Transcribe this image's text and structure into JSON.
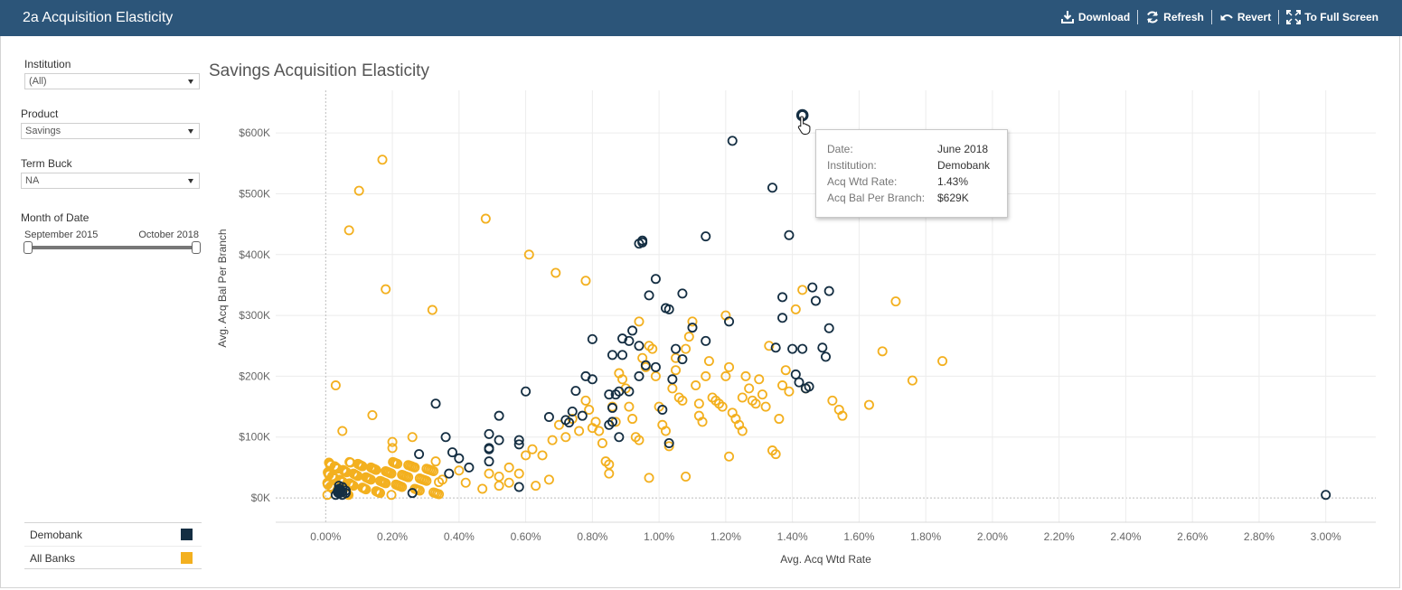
{
  "app": {
    "title": "2a Acquisition Elasticity"
  },
  "toolbar": {
    "download": "Download",
    "refresh": "Refresh",
    "revert": "Revert",
    "full_screen": "To Full Screen"
  },
  "filters": {
    "institution": {
      "label": "Institution",
      "value": "(All)"
    },
    "product": {
      "label": "Product",
      "value": "Savings"
    },
    "term_bucket": {
      "label": "Term Buck",
      "value": "NA"
    },
    "month": {
      "label": "Month of Date",
      "start": "September 2015",
      "end": "October 2018",
      "range_fraction": [
        0.0,
        1.0
      ]
    }
  },
  "legend": [
    {
      "label": "Demobank",
      "color": "#142e42"
    },
    {
      "label": "All Banks",
      "color": "#f3b01f"
    }
  ],
  "tooltip": {
    "rows": [
      {
        "key": "Date:",
        "value": "June 2018"
      },
      {
        "key": "Institution:",
        "value": "Demobank"
      },
      {
        "key": "Acq Wtd Rate:",
        "value": "1.43%"
      },
      {
        "key": "Acq Bal Per Branch:",
        "value": "$629K"
      }
    ]
  },
  "chart_data": {
    "type": "scatter",
    "title": "Savings Acquisition Elasticity",
    "xlabel": "Avg. Acq Wtd Rate",
    "ylabel": "Avg. Acq Bal Per Branch",
    "xlim": [
      -0.15,
      3.15
    ],
    "ylim": [
      -40,
      670
    ],
    "x_ticks": [
      "0.00%",
      "0.20%",
      "0.40%",
      "0.60%",
      "0.80%",
      "1.00%",
      "1.20%",
      "1.40%",
      "1.60%",
      "1.80%",
      "2.00%",
      "2.20%",
      "2.40%",
      "2.60%",
      "2.80%",
      "3.00%"
    ],
    "x_tick_values": [
      0,
      0.2,
      0.4,
      0.6,
      0.8,
      1.0,
      1.2,
      1.4,
      1.6,
      1.8,
      2.0,
      2.2,
      2.4,
      2.6,
      2.8,
      3.0
    ],
    "y_ticks": [
      "$0K",
      "$100K",
      "$200K",
      "$300K",
      "$400K",
      "$500K",
      "$600K"
    ],
    "y_tick_values": [
      0,
      100,
      200,
      300,
      400,
      500,
      600
    ],
    "grid": true,
    "series": [
      {
        "name": "All Banks",
        "color": "#f3b01f",
        "points": [
          [
            0.17,
            556
          ],
          [
            0.1,
            505
          ],
          [
            0.07,
            440
          ],
          [
            0.48,
            459
          ],
          [
            0.61,
            400
          ],
          [
            0.69,
            370
          ],
          [
            0.78,
            357
          ],
          [
            0.18,
            343
          ],
          [
            0.32,
            309
          ],
          [
            0.03,
            185
          ],
          [
            0.14,
            136
          ],
          [
            0.05,
            110
          ],
          [
            0.2,
            92
          ],
          [
            0.2,
            82
          ],
          [
            0.26,
            100
          ],
          [
            0.33,
            60
          ],
          [
            0.4,
            45
          ],
          [
            0.49,
            40
          ],
          [
            0.52,
            35
          ],
          [
            0.55,
            50
          ],
          [
            0.58,
            40
          ],
          [
            0.6,
            70
          ],
          [
            0.62,
            80
          ],
          [
            0.65,
            70
          ],
          [
            0.68,
            95
          ],
          [
            0.7,
            120
          ],
          [
            0.72,
            100
          ],
          [
            0.74,
            130
          ],
          [
            0.76,
            110
          ],
          [
            0.78,
            160
          ],
          [
            0.79,
            145
          ],
          [
            0.8,
            115
          ],
          [
            0.81,
            125
          ],
          [
            0.82,
            110
          ],
          [
            0.83,
            90
          ],
          [
            0.84,
            60
          ],
          [
            0.85,
            55
          ],
          [
            0.85,
            40
          ],
          [
            0.86,
            150
          ],
          [
            0.87,
            125
          ],
          [
            0.88,
            205
          ],
          [
            0.89,
            195
          ],
          [
            0.9,
            180
          ],
          [
            0.91,
            150
          ],
          [
            0.92,
            130
          ],
          [
            0.93,
            100
          ],
          [
            0.94,
            95
          ],
          [
            0.94,
            290
          ],
          [
            0.95,
            230
          ],
          [
            0.96,
            215
          ],
          [
            0.97,
            250
          ],
          [
            0.98,
            245
          ],
          [
            0.99,
            200
          ],
          [
            1.0,
            150
          ],
          [
            1.01,
            120
          ],
          [
            1.02,
            110
          ],
          [
            1.03,
            85
          ],
          [
            1.04,
            180
          ],
          [
            1.05,
            210
          ],
          [
            1.05,
            230
          ],
          [
            1.06,
            165
          ],
          [
            1.07,
            160
          ],
          [
            1.08,
            245
          ],
          [
            1.09,
            265
          ],
          [
            1.1,
            290
          ],
          [
            1.11,
            185
          ],
          [
            1.12,
            155
          ],
          [
            1.12,
            135
          ],
          [
            1.13,
            125
          ],
          [
            1.14,
            200
          ],
          [
            1.15,
            225
          ],
          [
            1.16,
            165
          ],
          [
            1.17,
            160
          ],
          [
            1.18,
            155
          ],
          [
            1.19,
            150
          ],
          [
            1.2,
            300
          ],
          [
            1.2,
            200
          ],
          [
            1.21,
            215
          ],
          [
            1.21,
            68
          ],
          [
            1.22,
            140
          ],
          [
            1.23,
            130
          ],
          [
            1.24,
            120
          ],
          [
            1.25,
            110
          ],
          [
            1.25,
            165
          ],
          [
            1.26,
            200
          ],
          [
            1.27,
            180
          ],
          [
            1.28,
            160
          ],
          [
            1.29,
            155
          ],
          [
            1.3,
            195
          ],
          [
            1.31,
            170
          ],
          [
            1.32,
            150
          ],
          [
            1.33,
            250
          ],
          [
            1.34,
            78
          ],
          [
            1.35,
            72
          ],
          [
            1.36,
            130
          ],
          [
            1.37,
            185
          ],
          [
            1.38,
            210
          ],
          [
            1.39,
            175
          ],
          [
            1.41,
            310
          ],
          [
            1.43,
            342
          ],
          [
            1.44,
            180
          ],
          [
            1.52,
            160
          ],
          [
            1.54,
            145
          ],
          [
            1.55,
            135
          ],
          [
            1.63,
            153
          ],
          [
            1.67,
            241
          ],
          [
            1.71,
            323
          ],
          [
            1.76,
            193
          ],
          [
            1.85,
            225
          ],
          [
            1.08,
            35
          ],
          [
            0.97,
            33
          ],
          [
            0.55,
            25
          ],
          [
            0.63,
            20
          ],
          [
            0.67,
            30
          ],
          [
            0.35,
            30
          ],
          [
            0.42,
            25
          ],
          [
            0.47,
            15
          ],
          [
            0.52,
            20
          ]
        ]
      },
      {
        "name": "Demobank",
        "color": "#142e42",
        "points": [
          [
            1.43,
            629
          ],
          [
            1.22,
            587
          ],
          [
            1.34,
            510
          ],
          [
            1.39,
            432
          ],
          [
            1.14,
            430
          ],
          [
            0.95,
            423
          ],
          [
            0.95,
            420
          ],
          [
            0.94,
            418
          ],
          [
            0.99,
            360
          ],
          [
            1.46,
            346
          ],
          [
            1.51,
            340
          ],
          [
            1.07,
            336
          ],
          [
            0.97,
            333
          ],
          [
            1.37,
            330
          ],
          [
            1.47,
            324
          ],
          [
            1.02,
            312
          ],
          [
            1.03,
            310
          ],
          [
            1.21,
            290
          ],
          [
            1.37,
            296
          ],
          [
            0.92,
            275
          ],
          [
            1.1,
            280
          ],
          [
            1.51,
            279
          ],
          [
            0.8,
            261
          ],
          [
            0.89,
            262
          ],
          [
            1.14,
            258
          ],
          [
            0.91,
            258
          ],
          [
            0.94,
            250
          ],
          [
            1.35,
            247
          ],
          [
            1.43,
            245
          ],
          [
            1.4,
            245
          ],
          [
            1.49,
            247
          ],
          [
            1.05,
            245
          ],
          [
            0.89,
            235
          ],
          [
            1.07,
            228
          ],
          [
            1.5,
            232
          ],
          [
            0.86,
            235
          ],
          [
            0.99,
            215
          ],
          [
            1.41,
            203
          ],
          [
            0.94,
            200
          ],
          [
            0.96,
            218
          ],
          [
            0.78,
            200
          ],
          [
            0.8,
            195
          ],
          [
            1.04,
            195
          ],
          [
            1.42,
            190
          ],
          [
            0.88,
            175
          ],
          [
            0.75,
            176
          ],
          [
            0.87,
            170
          ],
          [
            0.91,
            175
          ],
          [
            1.45,
            183
          ],
          [
            1.44,
            180
          ],
          [
            0.6,
            175
          ],
          [
            0.85,
            170
          ],
          [
            0.33,
            155
          ],
          [
            0.74,
            142
          ],
          [
            0.77,
            135
          ],
          [
            0.72,
            128
          ],
          [
            0.73,
            124
          ],
          [
            0.86,
            148
          ],
          [
            1.01,
            145
          ],
          [
            0.67,
            133
          ],
          [
            0.85,
            120
          ],
          [
            0.86,
            125
          ],
          [
            0.88,
            100
          ],
          [
            1.03,
            90
          ],
          [
            0.52,
            135
          ],
          [
            0.36,
            100
          ],
          [
            0.49,
            105
          ],
          [
            0.52,
            95
          ],
          [
            0.58,
            95
          ],
          [
            0.58,
            88
          ],
          [
            0.38,
            75
          ],
          [
            0.4,
            65
          ],
          [
            0.43,
            50
          ],
          [
            0.49,
            82
          ],
          [
            0.49,
            80
          ],
          [
            0.49,
            60
          ],
          [
            0.28,
            72
          ],
          [
            0.37,
            40
          ],
          [
            0.58,
            18
          ],
          [
            0.26,
            8
          ],
          [
            3.0,
            5
          ],
          [
            0.04,
            15
          ],
          [
            0.05,
            10
          ],
          [
            0.04,
            8
          ],
          [
            0.05,
            18
          ],
          [
            0.06,
            12
          ],
          [
            0.03,
            5
          ],
          [
            0.05,
            5
          ],
          [
            0.04,
            20
          ],
          [
            0.06,
            8
          ]
        ]
      }
    ]
  }
}
